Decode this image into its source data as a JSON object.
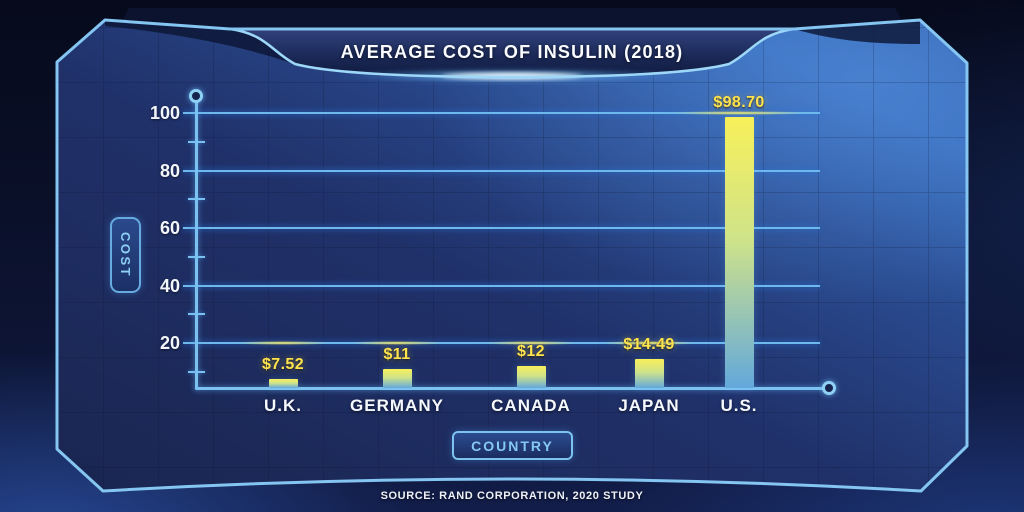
{
  "chart_data": {
    "type": "bar",
    "title": "AVERAGE COST OF INSULIN (2018)",
    "categories": [
      "U.K.",
      "GERMANY",
      "CANADA",
      "JAPAN",
      "U.S."
    ],
    "values": [
      7.52,
      11,
      12,
      14.49,
      98.7
    ],
    "value_labels": [
      "$7.52",
      "$11",
      "$12",
      "$14.49",
      "$98.70"
    ],
    "xlabel": "COUNTRY",
    "ylabel": "COST",
    "y_ticks": [
      100,
      80,
      60,
      40,
      20
    ],
    "y_minor_ticks": [
      90,
      70,
      50,
      30,
      10
    ],
    "ylim": [
      0,
      105
    ],
    "grid": true,
    "legend": false,
    "source": "SOURCE: RAND CORPORATION, 2020 STUDY",
    "colors": {
      "bar_top": "#f8f05a",
      "bar_bottom": "#63a8dc",
      "value_label": "#ffe44e",
      "axis": "#7cc2f0",
      "tick_text": "#f2f5fa",
      "panel_dark": "#1c2958",
      "panel_bright": "#3468b6",
      "background": "#0a1029"
    }
  }
}
